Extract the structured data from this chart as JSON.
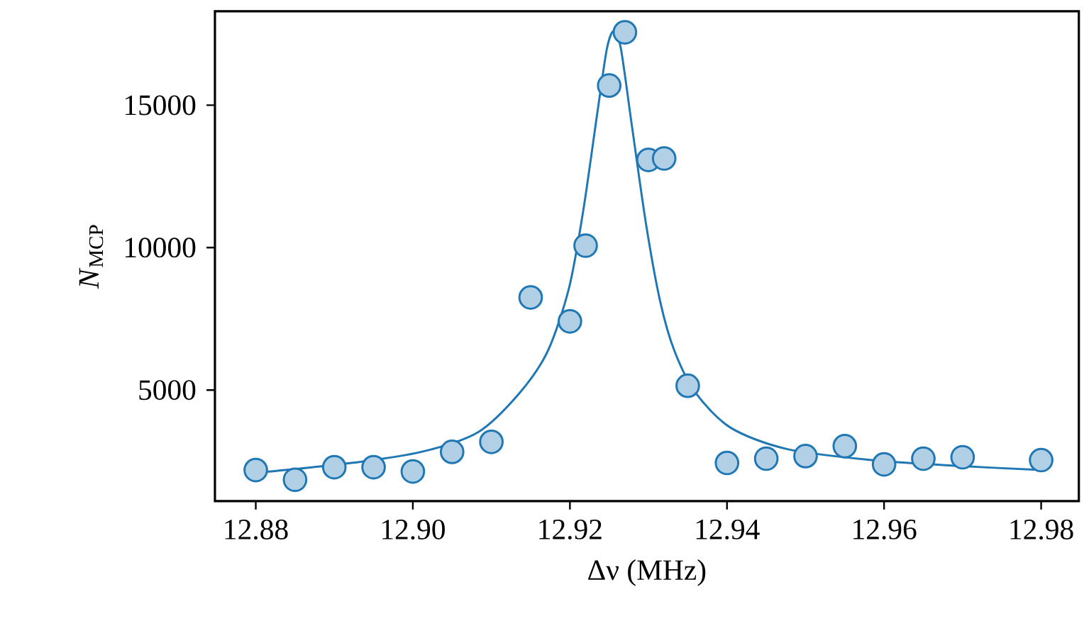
{
  "chart_data": {
    "type": "scatter",
    "xlabel": "Δν (MHz)",
    "ylabel": "*N*$_{MCP}$",
    "xlim": [
      12.8748,
      12.9848
    ],
    "ylim": [
      1100,
      18300
    ],
    "xticks": [
      {
        "value": 12.88,
        "label": "12.88"
      },
      {
        "value": 12.9,
        "label": "12.90"
      },
      {
        "value": 12.92,
        "label": "12.92"
      },
      {
        "value": 12.94,
        "label": "12.94"
      },
      {
        "value": 12.96,
        "label": "12.96"
      },
      {
        "value": 12.98,
        "label": "12.98"
      }
    ],
    "yticks": [
      5000,
      10000,
      15000
    ],
    "grid": false,
    "series": [
      {
        "type": "line",
        "color": "#1f77b4",
        "marker": "none",
        "line_style": "solid",
        "x": [
          12.88,
          12.8922,
          12.9011,
          12.9083,
          12.9136,
          12.9172,
          12.9199,
          12.9217,
          12.9235,
          12.9247,
          12.9256,
          12.9265,
          12.9279,
          12.9297,
          12.9315,
          12.9333,
          12.936,
          12.9405,
          12.9476,
          12.9584,
          12.9691,
          12.98
        ],
        "values": [
          2090,
          2440,
          2830,
          3520,
          4900,
          6380,
          8600,
          11300,
          14750,
          16970,
          17610,
          16970,
          14260,
          10810,
          8100,
          6380,
          4900,
          3670,
          2930,
          2540,
          2340,
          2190
        ]
      },
      {
        "color": "#1f77b4",
        "marker": "circle",
        "x": [
          12.88,
          12.885,
          12.89,
          12.895,
          12.9,
          12.905,
          12.91,
          12.915,
          12.92,
          12.922,
          12.925,
          12.927,
          12.93,
          12.932,
          12.935,
          12.94,
          12.945,
          12.95,
          12.955,
          12.96,
          12.965,
          12.97,
          12.98
        ],
        "values": [
          2190,
          1850,
          2290,
          2290,
          2140,
          2830,
          3180,
          8250,
          7410,
          10070,
          15690,
          17560,
          13080,
          13130,
          5150,
          2440,
          2590,
          2680,
          3030,
          2390,
          2590,
          2640,
          2540
        ]
      }
    ]
  }
}
